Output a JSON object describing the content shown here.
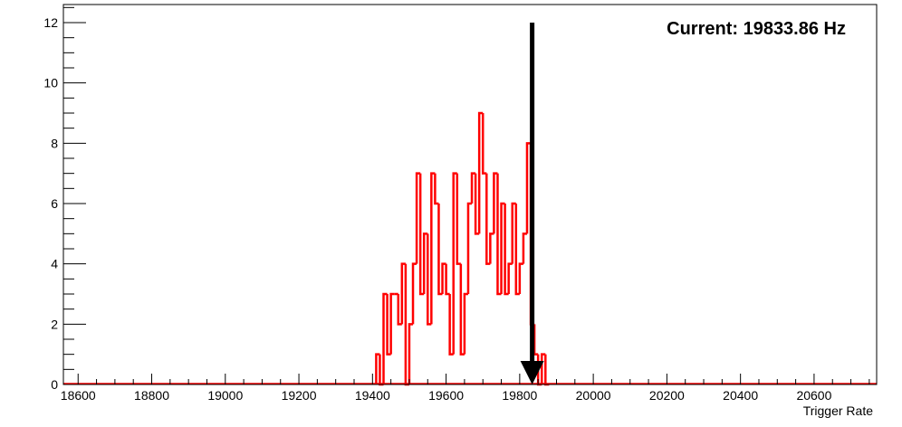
{
  "chart_data": {
    "type": "histogram",
    "xlabel": "Trigger Rate",
    "ylabel": "",
    "xlim": [
      18560,
      20770
    ],
    "ylim": [
      0,
      12.6
    ],
    "x_ticks": [
      "18600",
      "18800",
      "19000",
      "19200",
      "19400",
      "19600",
      "19800",
      "20000",
      "20200",
      "20400",
      "20600"
    ],
    "y_ticks": [
      "0",
      "2",
      "4",
      "6",
      "8",
      "10",
      "12"
    ],
    "series": [
      {
        "color": "#ff0000",
        "bin_width": 10,
        "bins": [
          [
            19410,
            1
          ],
          [
            19420,
            0
          ],
          [
            19430,
            3
          ],
          [
            19440,
            1
          ],
          [
            19450,
            3
          ],
          [
            19460,
            3
          ],
          [
            19470,
            2
          ],
          [
            19480,
            4
          ],
          [
            19490,
            0
          ],
          [
            19500,
            2
          ],
          [
            19510,
            4
          ],
          [
            19520,
            7
          ],
          [
            19530,
            3
          ],
          [
            19540,
            5
          ],
          [
            19550,
            2
          ],
          [
            19560,
            7
          ],
          [
            19570,
            6
          ],
          [
            19580,
            3
          ],
          [
            19590,
            4
          ],
          [
            19600,
            3
          ],
          [
            19610,
            1
          ],
          [
            19620,
            7
          ],
          [
            19630,
            4
          ],
          [
            19640,
            1
          ],
          [
            19650,
            3
          ],
          [
            19660,
            6
          ],
          [
            19670,
            7
          ],
          [
            19680,
            5
          ],
          [
            19690,
            9
          ],
          [
            19700,
            7
          ],
          [
            19710,
            4
          ],
          [
            19720,
            5
          ],
          [
            19730,
            7
          ],
          [
            19740,
            3
          ],
          [
            19750,
            6
          ],
          [
            19760,
            3
          ],
          [
            19770,
            4
          ],
          [
            19780,
            6
          ],
          [
            19790,
            3
          ],
          [
            19800,
            4
          ],
          [
            19810,
            5
          ],
          [
            19820,
            8
          ],
          [
            19830,
            2
          ],
          [
            19840,
            1
          ],
          [
            19850,
            0
          ],
          [
            19860,
            1
          ],
          [
            19870,
            0
          ]
        ]
      }
    ],
    "current_value": 19833.86,
    "annotation": "Current: 19833.86 Hz",
    "arrow": {
      "x": 19833.86,
      "y_from": 12,
      "y_to": 0,
      "color": "#000000"
    },
    "grid": false
  }
}
